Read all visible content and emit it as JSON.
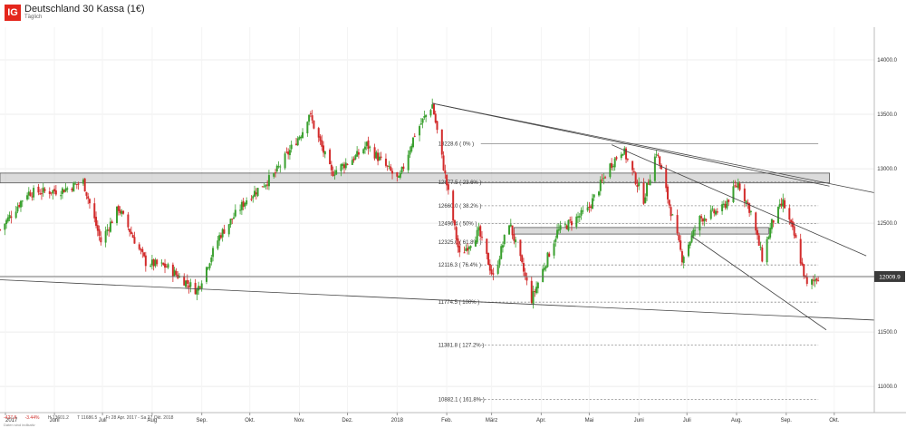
{
  "header": {
    "logo_text": "IG",
    "title": "Deutschland 30 Kassa (1€)",
    "subtitle": "Täglich"
  },
  "footer": {
    "change": "-427.8",
    "change_pct": "-3.44%",
    "high": "H 13601.2",
    "low": "T 11686.5",
    "period": "Fr 28 Apr. 2017 - Sa 27 Okt. 2018",
    "disclaimer": "Daten sind indikativ"
  },
  "colors": {
    "up": "#3aa02f",
    "down": "#d22b2b",
    "zone": "#bdbdbd",
    "trend": "#444444",
    "fib": "#888888",
    "price_box": "#3a3a3a"
  },
  "chart_data": {
    "type": "candlestick",
    "ylim": [
      10760,
      14300
    ],
    "yticks": [
      "14000.0",
      "13500.0",
      "13000.0",
      "12500.0",
      "12000.0",
      "11500.0",
      "11000.0"
    ],
    "ytick_values": [
      14000,
      13500,
      13000,
      12500,
      12000,
      11500,
      11000
    ],
    "xticks": [
      "2017",
      "Juni",
      "Juli",
      "Aug",
      "Sep.",
      "Okt.",
      "Nov.",
      "Dez.",
      "2018",
      "Feb.",
      "März",
      "Apr.",
      "Mai",
      "Juni",
      "Juli",
      "Aug.",
      "Sep.",
      "Okt."
    ],
    "current_price": "12009.9",
    "current_price_value": 12009.9,
    "path_points": [
      [
        "2017-04-28",
        12440
      ],
      [
        "2017-05-15",
        12780
      ],
      [
        "2017-06-05",
        12800
      ],
      [
        "2017-06-19",
        12880
      ],
      [
        "2017-06-30",
        12330
      ],
      [
        "2017-07-11",
        12640
      ],
      [
        "2017-07-28",
        12140
      ],
      [
        "2017-08-10",
        12100
      ],
      [
        "2017-08-29",
        11880
      ],
      [
        "2017-09-12",
        12380
      ],
      [
        "2017-09-29",
        12720
      ],
      [
        "2017-10-16",
        12940
      ],
      [
        "2017-11-03",
        13350
      ],
      [
        "2017-11-07",
        13510
      ],
      [
        "2017-11-21",
        12960
      ],
      [
        "2017-12-07",
        13120
      ],
      [
        "2017-12-13",
        13220
      ],
      [
        "2017-12-22",
        13070
      ],
      [
        "2018-01-02",
        12890
      ],
      [
        "2018-01-12",
        13320
      ],
      [
        "2018-01-23",
        13590
      ],
      [
        "2018-02-09",
        12200
      ],
      [
        "2018-02-21",
        12420
      ],
      [
        "2018-03-02",
        12000
      ],
      [
        "2018-03-12",
        12510
      ],
      [
        "2018-03-26",
        11800
      ],
      [
        "2018-04-11",
        12420
      ],
      [
        "2018-04-30",
        12620
      ],
      [
        "2018-05-14",
        13030
      ],
      [
        "2018-05-22",
        13180
      ],
      [
        "2018-06-04",
        12720
      ],
      [
        "2018-06-12",
        13160
      ],
      [
        "2018-06-28",
        12180
      ],
      [
        "2018-07-09",
        12540
      ],
      [
        "2018-07-23",
        12630
      ],
      [
        "2018-08-02",
        12870
      ],
      [
        "2018-08-10",
        12600
      ],
      [
        "2018-08-17",
        12180
      ],
      [
        "2018-08-23",
        12500
      ],
      [
        "2018-08-30",
        12690
      ],
      [
        "2018-09-07",
        12340
      ],
      [
        "2018-09-14",
        11920
      ],
      [
        "2018-09-21",
        12010
      ]
    ],
    "fib_levels": [
      {
        "label": "13228.6 ( 0% )",
        "value": 13228.6
      },
      {
        "label": "12877.5 ( 23.6% )",
        "value": 12877.5
      },
      {
        "label": "12660.0 ( 38.2% )",
        "value": 12660.0
      },
      {
        "label": "12496.4 ( 50% )",
        "value": 12496.4
      },
      {
        "label": "12325.0 ( 61.8% )",
        "value": 12325.0
      },
      {
        "label": "12116.3 ( 76.4% )",
        "value": 12116.3
      },
      {
        "label": "11774.5 ( 100% )",
        "value": 11774.5
      },
      {
        "label": "11381.8 ( 127.2% )",
        "value": 11381.8
      },
      {
        "label": "10882.1 ( 161.8% )",
        "value": 10882.1
      }
    ],
    "zones": [
      {
        "from": "2017-04-28",
        "to": "2018-09-28",
        "low": 12870,
        "high": 12960
      },
      {
        "from": "2018-03-15",
        "to": "2018-08-21",
        "low": 12400,
        "high": 12460
      }
    ],
    "trendlines": [
      {
        "from": [
          "2018-01-23",
          13600
        ],
        "to": [
          "2018-10-26",
          12780
        ]
      },
      {
        "from": [
          "2018-01-23",
          13600
        ],
        "to": [
          "2018-09-28",
          12840
        ]
      },
      {
        "from": [
          "2018-05-15",
          13220
        ],
        "to": [
          "2018-10-21",
          12200
        ]
      },
      {
        "from": [
          "2018-07-04",
          12380
        ],
        "to": [
          "2018-09-26",
          11520
        ]
      },
      {
        "from": [
          "2017-04-28",
          11980
        ],
        "to": [
          "2018-10-26",
          11610
        ]
      }
    ]
  }
}
